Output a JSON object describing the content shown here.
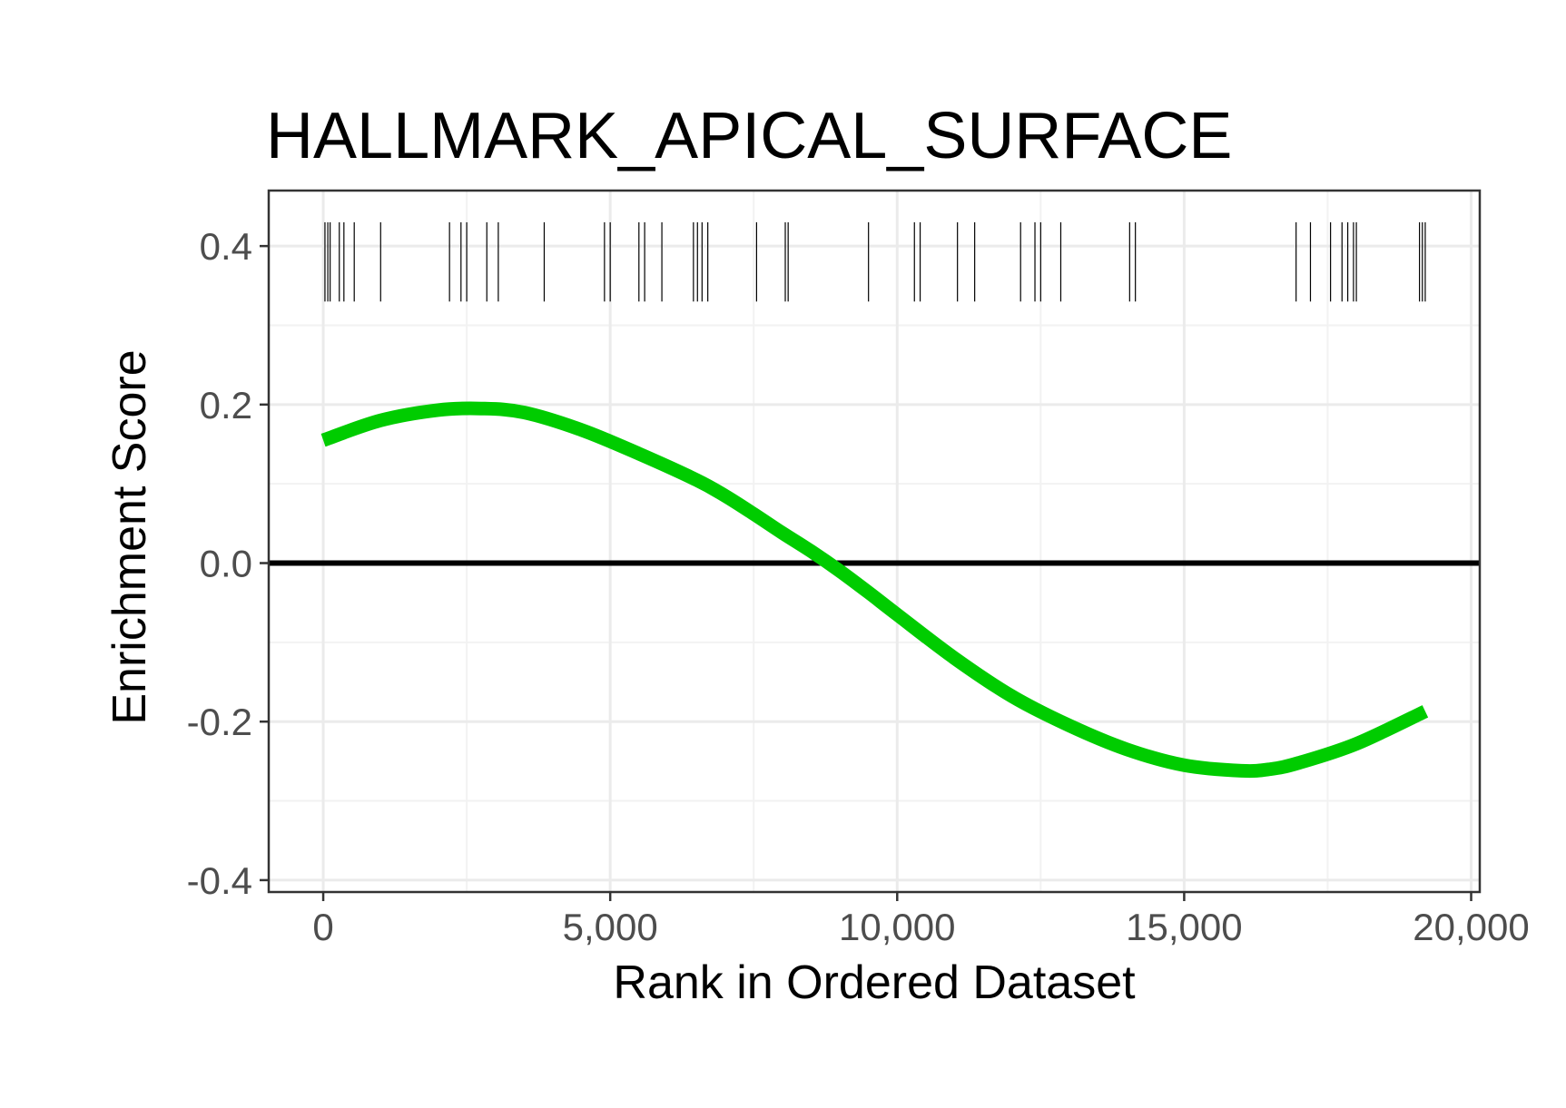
{
  "chart_data": {
    "type": "line",
    "title": "HALLMARK_APICAL_SURFACE",
    "xlabel": "Rank in Ordered Dataset",
    "ylabel": "Enrichment Score",
    "xlim": [
      -950,
      20150
    ],
    "ylim": [
      -0.415,
      0.47
    ],
    "x_ticks": [
      0,
      5000,
      10000,
      15000,
      20000
    ],
    "x_tick_labels": [
      "0",
      "5,000",
      "10,000",
      "15,000",
      "20,000"
    ],
    "y_ticks": [
      -0.4,
      -0.2,
      0.0,
      0.2,
      0.4
    ],
    "y_tick_labels": [
      "-0.4",
      "-0.2",
      "0.0",
      "0.2",
      "0.4"
    ],
    "grid": true,
    "reference_line_y": 0,
    "series": [
      {
        "color": "#00cc00",
        "x": [
          0,
          1000,
          2000,
          2750,
          3500,
          4500,
          5500,
          6500,
          7000,
          7500,
          8000,
          8500,
          9000,
          9500,
          10000,
          11000,
          12000,
          13000,
          14000,
          15000,
          16000,
          16500,
          17000,
          18000,
          19200
        ],
        "y": [
          0.155,
          0.18,
          0.193,
          0.195,
          0.19,
          0.168,
          0.138,
          0.105,
          0.085,
          0.062,
          0.038,
          0.015,
          -0.01,
          -0.037,
          -0.065,
          -0.12,
          -0.168,
          -0.205,
          -0.235,
          -0.255,
          -0.262,
          -0.26,
          -0.252,
          -0.228,
          -0.187
        ]
      }
    ],
    "rug": {
      "color": "#000000",
      "y_range": [
        0.33,
        0.43
      ],
      "positions": [
        30,
        80,
        120,
        280,
        360,
        540,
        1000,
        2200,
        2400,
        2500,
        2850,
        3050,
        3850,
        4900,
        5000,
        5500,
        5600,
        5900,
        6450,
        6520,
        6600,
        6700,
        7550,
        8050,
        8100,
        9500,
        10300,
        10400,
        11050,
        11350,
        12150,
        12400,
        12500,
        12850,
        14050,
        14150,
        16950,
        17200,
        17550,
        17750,
        17850,
        17950,
        18000,
        19100,
        19150,
        19200
      ]
    }
  }
}
